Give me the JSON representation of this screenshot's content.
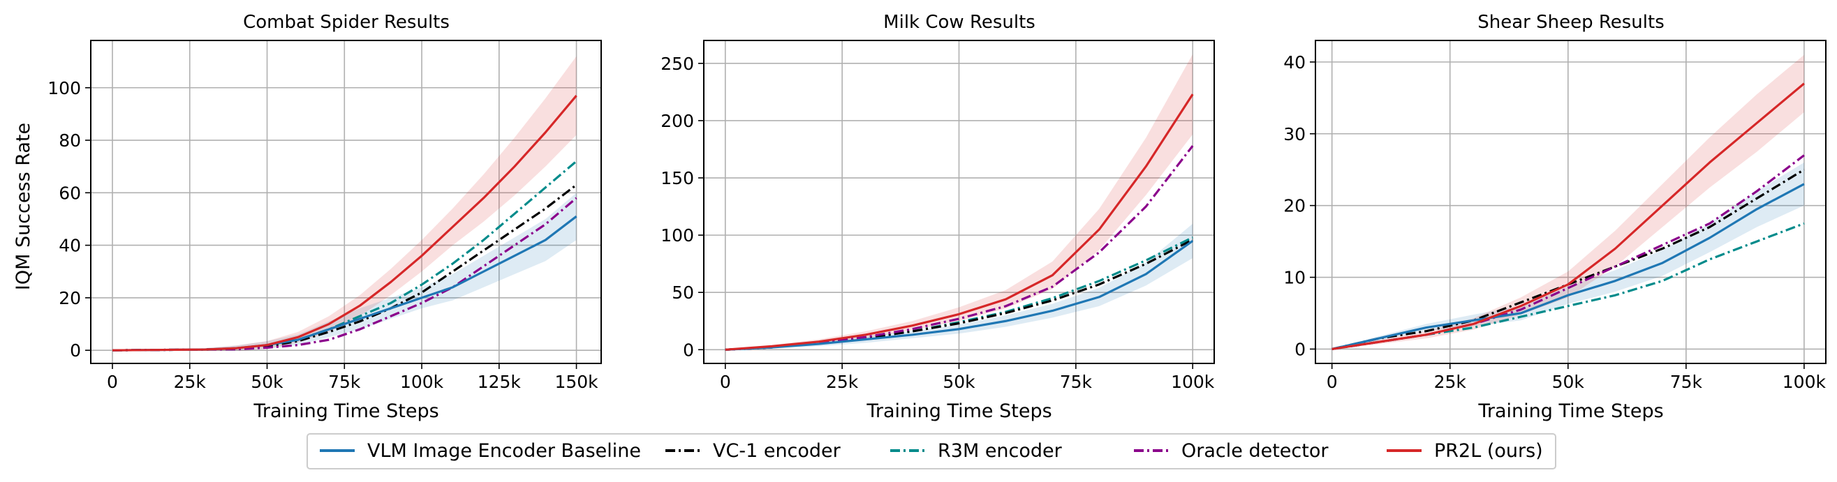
{
  "figure": {
    "ylabel": "IQM Success Rate"
  },
  "legend": [
    {
      "key": "vlm",
      "label": "VLM Image Encoder Baseline",
      "color": "#1f77b4",
      "dash": "solid"
    },
    {
      "key": "vc1",
      "label": "VC-1 encoder",
      "color": "#000000",
      "dash": "dashdot"
    },
    {
      "key": "r3m",
      "label": "R3M encoder",
      "color": "#008b8b",
      "dash": "dashdot"
    },
    {
      "key": "oracle",
      "label": "Oracle detector",
      "color": "#8b008b",
      "dash": "dashdot"
    },
    {
      "key": "pr2l",
      "label": "PR2L (ours)",
      "color": "#d62728",
      "dash": "solid"
    }
  ],
  "chart_data": [
    {
      "type": "line",
      "title": "Combat Spider Results",
      "xlabel": "Training Time Steps",
      "ylabel": "IQM Success Rate",
      "xlim": [
        -7000,
        158000
      ],
      "ylim": [
        -5,
        118
      ],
      "xticks": [
        0,
        25000,
        50000,
        75000,
        100000,
        125000,
        150000
      ],
      "xtick_labels": [
        "0",
        "25k",
        "50k",
        "75k",
        "100k",
        "125k",
        "150k"
      ],
      "yticks": [
        0,
        20,
        40,
        60,
        80,
        100
      ],
      "ytick_labels": [
        "0",
        "20",
        "40",
        "60",
        "80",
        "100"
      ],
      "grid": true,
      "x": [
        0,
        10000,
        20000,
        30000,
        40000,
        50000,
        60000,
        70000,
        80000,
        90000,
        100000,
        110000,
        120000,
        130000,
        140000,
        150000
      ],
      "series": [
        {
          "key": "vlm",
          "values": [
            0,
            0.1,
            0.2,
            0.3,
            0.8,
            2,
            4,
            8,
            12,
            16,
            20,
            24,
            30,
            36,
            42,
            51
          ],
          "band": [
            0,
            0.1,
            0.3,
            0.5,
            1,
            1.5,
            2,
            3,
            4,
            4,
            4,
            5,
            6,
            7,
            8,
            9
          ]
        },
        {
          "key": "vc1",
          "values": [
            0,
            0.1,
            0.2,
            0.3,
            0.6,
            1.5,
            3.5,
            7,
            11,
            16,
            22,
            30,
            38,
            46,
            54,
            63
          ]
        },
        {
          "key": "r3m",
          "values": [
            0,
            0.1,
            0.2,
            0.3,
            0.6,
            1.5,
            4,
            8,
            13,
            18,
            25,
            33,
            42,
            52,
            62,
            72
          ]
        },
        {
          "key": "oracle",
          "values": [
            0,
            0.1,
            0.2,
            0.3,
            0.4,
            1,
            2,
            4,
            8,
            13,
            18,
            24,
            32,
            40,
            48,
            58
          ]
        },
        {
          "key": "pr2l",
          "values": [
            0,
            0.1,
            0.2,
            0.3,
            0.8,
            2,
            5,
            10,
            17,
            26,
            36,
            47,
            58,
            70,
            83,
            97
          ],
          "band": [
            0,
            0.1,
            0.3,
            0.5,
            1,
            1.5,
            2,
            3,
            4,
            5,
            6,
            7,
            9,
            11,
            13,
            15
          ]
        }
      ]
    },
    {
      "type": "line",
      "title": "Milk Cow Results",
      "xlabel": "Training Time Steps",
      "ylabel": "",
      "xlim": [
        -4600,
        104600
      ],
      "ylim": [
        -12,
        270
      ],
      "xticks": [
        0,
        25000,
        50000,
        75000,
        100000
      ],
      "xtick_labels": [
        "0",
        "25k",
        "50k",
        "75k",
        "100k"
      ],
      "yticks": [
        0,
        50,
        100,
        150,
        200,
        250
      ],
      "ytick_labels": [
        "0",
        "50",
        "100",
        "150",
        "200",
        "250"
      ],
      "grid": true,
      "x": [
        0,
        10000,
        20000,
        30000,
        40000,
        50000,
        60000,
        70000,
        80000,
        90000,
        100000
      ],
      "series": [
        {
          "key": "vlm",
          "values": [
            0,
            2,
            5,
            9,
            13,
            18,
            25,
            34,
            46,
            66,
            95
          ],
          "band": [
            0,
            1,
            2,
            3,
            3,
            4,
            5,
            6,
            8,
            10,
            15
          ]
        },
        {
          "key": "vc1",
          "values": [
            0,
            2,
            6,
            10,
            16,
            23,
            32,
            43,
            57,
            75,
            96
          ]
        },
        {
          "key": "r3m",
          "values": [
            0,
            2,
            6,
            10,
            16,
            24,
            33,
            45,
            60,
            78,
            98
          ]
        },
        {
          "key": "oracle",
          "values": [
            0,
            2,
            6,
            11,
            18,
            27,
            38,
            55,
            85,
            125,
            178
          ]
        },
        {
          "key": "pr2l",
          "values": [
            0,
            3,
            7,
            13,
            21,
            31,
            44,
            65,
            105,
            160,
            223
          ],
          "band": [
            0,
            1,
            2,
            3,
            4,
            6,
            8,
            12,
            18,
            25,
            35
          ]
        }
      ]
    },
    {
      "type": "line",
      "title": "Shear Sheep Results",
      "xlabel": "Training Time Steps",
      "ylabel": "",
      "xlim": [
        -3500,
        104600
      ],
      "ylim": [
        -2,
        43
      ],
      "xticks": [
        0,
        25000,
        50000,
        75000,
        100000
      ],
      "xtick_labels": [
        "0",
        "25k",
        "50k",
        "75k",
        "100k"
      ],
      "yticks": [
        0,
        10,
        20,
        30,
        40
      ],
      "ytick_labels": [
        "0",
        "10",
        "20",
        "30",
        "40"
      ],
      "grid": true,
      "x": [
        0,
        10000,
        20000,
        30000,
        40000,
        50000,
        60000,
        70000,
        80000,
        90000,
        100000
      ],
      "series": [
        {
          "key": "vlm",
          "values": [
            0,
            1.5,
            3,
            4,
            5,
            7.5,
            9.5,
            12,
            15.5,
            19.5,
            23
          ],
          "band": [
            0,
            0.3,
            0.5,
            0.8,
            1,
            1.2,
            1.5,
            1.8,
            2,
            2.5,
            3
          ]
        },
        {
          "key": "vc1",
          "values": [
            0,
            1.5,
            2.5,
            4,
            6.5,
            9,
            11.5,
            14,
            17,
            21,
            25
          ]
        },
        {
          "key": "r3m",
          "values": [
            0,
            1,
            2,
            3,
            4.5,
            6,
            7.5,
            9.5,
            12.5,
            15,
            17.5
          ]
        },
        {
          "key": "oracle",
          "values": [
            0,
            1,
            2,
            3.5,
            5.5,
            8.5,
            11.5,
            14.5,
            17.5,
            22,
            27
          ]
        },
        {
          "key": "pr2l",
          "values": [
            0,
            1,
            2,
            3.5,
            6,
            9,
            14,
            20,
            26,
            31.5,
            37
          ],
          "band": [
            0,
            0.3,
            0.5,
            0.8,
            1.2,
            1.8,
            2.5,
            3,
            3.5,
            4,
            4
          ]
        }
      ]
    }
  ]
}
